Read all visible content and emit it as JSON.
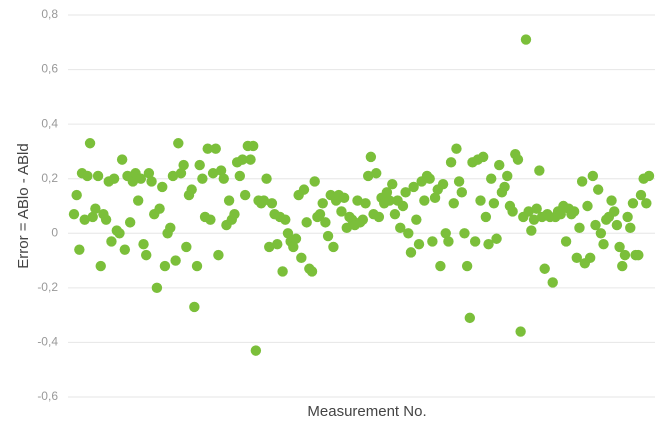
{
  "chart_data": {
    "type": "scatter",
    "y_label": "Error = ABlo - ABld",
    "x_label": "Measurement No.",
    "color": "#7bbf3a",
    "grid": true,
    "ylim": [
      -0.6,
      0.8
    ],
    "yticks": [
      {
        "value": -0.6,
        "label": "-0,6"
      },
      {
        "value": -0.4,
        "label": "-0,4"
      },
      {
        "value": -0.2,
        "label": "-0,2"
      },
      0,
      {
        "value": 0.2,
        "label": "0,2"
      },
      {
        "value": 0.4,
        "label": "0,4"
      },
      {
        "value": 0.6,
        "label": "0,6"
      },
      {
        "value": 0.8,
        "label": "0,8"
      }
    ],
    "values": [
      0.07,
      0.14,
      -0.06,
      0.22,
      0.05,
      0.21,
      0.33,
      0.06,
      0.09,
      0.21,
      -0.12,
      0.07,
      0.05,
      0.19,
      -0.03,
      0.2,
      0.01,
      0.0,
      0.27,
      -0.06,
      0.21,
      0.04,
      0.19,
      0.22,
      0.12,
      0.2,
      -0.04,
      -0.08,
      0.22,
      0.19,
      0.07,
      -0.2,
      0.09,
      0.17,
      -0.12,
      0.0,
      0.02,
      0.21,
      -0.1,
      0.33,
      0.22,
      0.25,
      -0.05,
      0.14,
      0.16,
      -0.27,
      -0.12,
      0.25,
      0.2,
      0.06,
      0.31,
      0.05,
      0.22,
      0.31,
      -0.08,
      0.23,
      0.2,
      0.03,
      0.12,
      0.05,
      0.07,
      0.26,
      0.21,
      0.27,
      0.14,
      0.32,
      0.27,
      0.32,
      -0.43,
      0.12,
      0.11,
      0.12,
      0.2,
      -0.05,
      0.11,
      0.07,
      -0.04,
      0.06,
      -0.14,
      0.05,
      0.0,
      -0.03,
      -0.05,
      -0.02,
      0.14,
      -0.09,
      0.16,
      0.04,
      -0.13,
      -0.14,
      0.19,
      0.06,
      0.07,
      0.11,
      0.04,
      -0.01,
      0.14,
      -0.05,
      0.12,
      0.14,
      0.08,
      0.13,
      0.02,
      0.06,
      0.05,
      0.03,
      0.12,
      0.04,
      0.05,
      0.11,
      0.21,
      0.28,
      0.07,
      0.22,
      0.06,
      0.13,
      0.11,
      0.15,
      0.12,
      0.18,
      0.07,
      0.12,
      0.02,
      0.1,
      0.15,
      0.0,
      -0.07,
      0.17,
      0.05,
      -0.04,
      0.19,
      0.12,
      0.21,
      0.2,
      -0.03,
      0.13,
      0.16,
      -0.12,
      0.18,
      0.0,
      -0.03,
      0.26,
      0.11,
      0.31,
      0.19,
      0.15,
      0.0,
      -0.12,
      -0.31,
      0.26,
      -0.03,
      0.27,
      0.12,
      0.28,
      0.06,
      -0.04,
      0.2,
      0.11,
      -0.02,
      0.25,
      0.15,
      0.17,
      0.21,
      0.1,
      0.08,
      0.29,
      0.27,
      -0.36,
      0.06,
      0.71,
      0.08,
      0.01,
      0.05,
      0.09,
      0.23,
      0.06,
      -0.13,
      0.07,
      0.06,
      -0.18,
      0.06,
      0.08,
      0.07,
      0.1,
      -0.03,
      0.09,
      0.07,
      0.08,
      -0.09,
      0.02,
      0.19,
      -0.11,
      0.1,
      -0.09,
      0.21,
      0.03,
      0.16,
      0.0,
      -0.04,
      0.05,
      0.06,
      0.12,
      0.08,
      0.03,
      -0.05,
      -0.12,
      -0.08,
      0.06,
      0.02,
      0.11,
      -0.08,
      -0.08,
      0.14,
      0.2,
      0.11,
      0.21
    ]
  }
}
